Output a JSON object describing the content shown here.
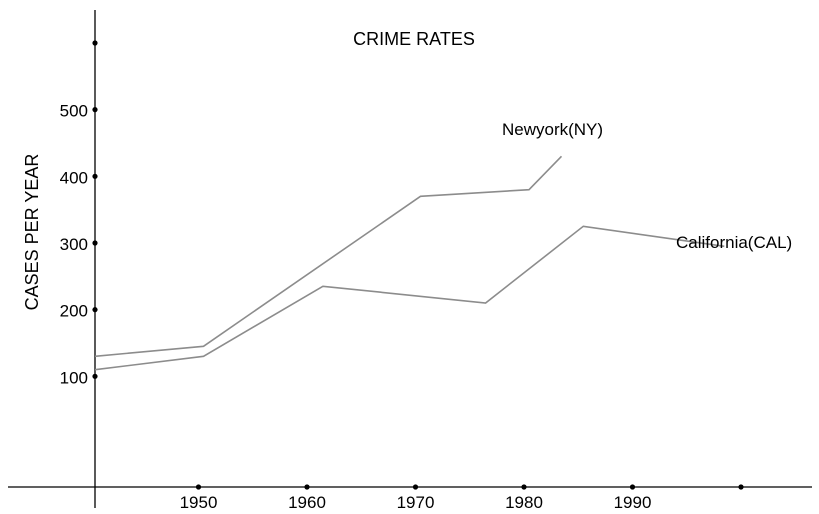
{
  "chart_data": {
    "type": "line",
    "title": "CRIME RATES",
    "xlabel": "",
    "ylabel": "CASES PER YEAR",
    "x_ticks": [
      "1950",
      "1960",
      "1970",
      "1980",
      "1990"
    ],
    "y_ticks": [
      "100",
      "200",
      "300",
      "400",
      "500"
    ],
    "xlim": [
      1940,
      2005
    ],
    "ylim": [
      -50,
      620
    ],
    "grid": false,
    "series": [
      {
        "name": "Newyork(NY)",
        "color": "#8c8c8c",
        "points": [
          [
            1940,
            130
          ],
          [
            1950,
            145
          ],
          [
            1970,
            370
          ],
          [
            1980,
            380
          ],
          [
            1983,
            430
          ]
        ]
      },
      {
        "name": "California(CAL)",
        "color": "#8c8c8c",
        "points": [
          [
            1940,
            110
          ],
          [
            1950,
            130
          ],
          [
            1961,
            235
          ],
          [
            1976,
            210
          ],
          [
            1985,
            325
          ],
          [
            1998,
            295
          ]
        ]
      }
    ]
  }
}
